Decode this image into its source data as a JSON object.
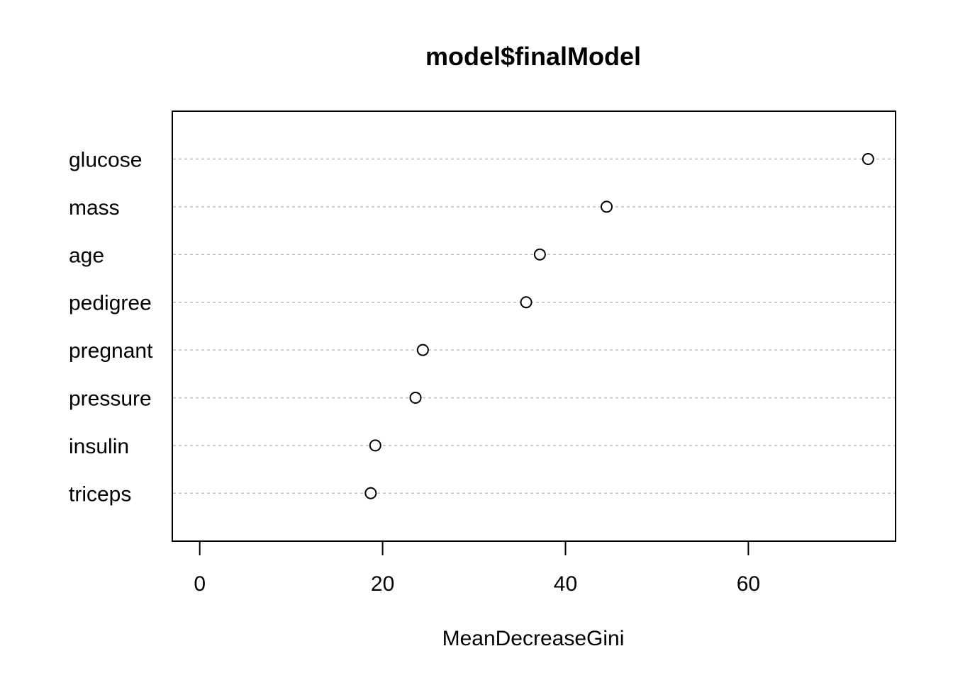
{
  "chart_data": {
    "type": "scatter",
    "title": "model$finalModel",
    "xlabel": "MeanDecreaseGini",
    "ylabel": "",
    "xlim": [
      -3,
      76.1
    ],
    "x_ticks": [
      0,
      20,
      40,
      60
    ],
    "grid": "dotted horizontal lines at each category",
    "marker": "open-circle",
    "categories": [
      "glucose",
      "mass",
      "age",
      "pedigree",
      "pregnant",
      "pressure",
      "insulin",
      "triceps"
    ],
    "values": [
      73.1,
      44.5,
      37.2,
      35.7,
      24.4,
      23.6,
      19.2,
      18.7
    ]
  }
}
